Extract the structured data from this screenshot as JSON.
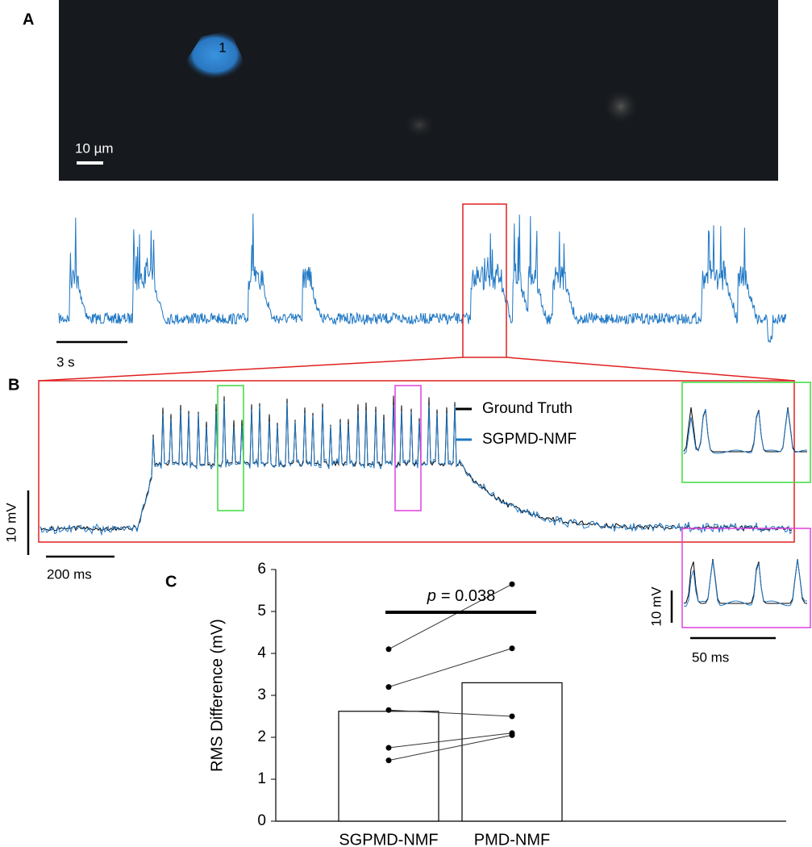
{
  "panel_labels": [
    "A",
    "B",
    "C"
  ],
  "image": {
    "cell_label": "1",
    "scale_bar": "10 µm"
  },
  "trace": {
    "scale_bar": "3 s"
  },
  "zoom": {
    "legend": [
      {
        "name": "Ground Truth",
        "color": "#000000"
      },
      {
        "name": "SGPMD-NMF",
        "color": "#1f77c4"
      }
    ],
    "x_scale_bar": "200 ms",
    "y_scale_bar": "10 mV"
  },
  "insets": {
    "x_scale_bar": "50 ms",
    "y_scale_bar": "10 mV"
  },
  "chart_data": {
    "type": "bar",
    "y_label": "RMS Difference (mV)",
    "categories": [
      "SGPMD-NMF",
      "PMD-NMF"
    ],
    "values": [
      2.62,
      3.3
    ],
    "color": "#ffffff",
    "pairs": [
      {
        "values": [
          4.1,
          5.65
        ]
      },
      {
        "values": [
          3.2,
          4.12
        ]
      },
      {
        "values": [
          2.65,
          2.5
        ]
      },
      {
        "values": [
          1.75,
          2.1
        ]
      },
      {
        "values": [
          1.45,
          2.05
        ]
      }
    ],
    "annotation": {
      "symbol": "p",
      "text": "= 0.038"
    },
    "ylim": [
      0,
      6
    ],
    "yticks": [
      0,
      1,
      2,
      3,
      4,
      5,
      6
    ]
  }
}
